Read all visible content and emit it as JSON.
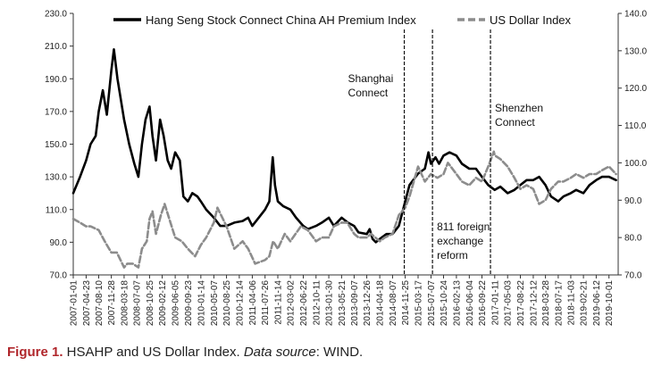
{
  "chart_data": {
    "type": "line",
    "series": [
      {
        "name": "Hang Seng Stock Connect China AH Premium Index",
        "axis": "left",
        "color": "#000000",
        "style": "solid",
        "points": [
          [
            "2007-01-01",
            120
          ],
          [
            "2007-03-01",
            130
          ],
          [
            "2007-04-23",
            140
          ],
          [
            "2007-06-01",
            150
          ],
          [
            "2007-07-15",
            155
          ],
          [
            "2007-08-10",
            170
          ],
          [
            "2007-09-15",
            183
          ],
          [
            "2007-10-20",
            168
          ],
          [
            "2007-11-28",
            195
          ],
          [
            "2007-12-20",
            208
          ],
          [
            "2008-01-20",
            190
          ],
          [
            "2008-03-18",
            165
          ],
          [
            "2008-05-01",
            150
          ],
          [
            "2008-06-15",
            138
          ],
          [
            "2008-07-20",
            130
          ],
          [
            "2008-08-20",
            150
          ],
          [
            "2008-09-20",
            165
          ],
          [
            "2008-10-25",
            173
          ],
          [
            "2008-11-20",
            155
          ],
          [
            "2008-12-20",
            140
          ],
          [
            "2009-01-25",
            165
          ],
          [
            "2009-02-25",
            155
          ],
          [
            "2009-04-01",
            140
          ],
          [
            "2009-05-01",
            135
          ],
          [
            "2009-06-05",
            145
          ],
          [
            "2009-07-15",
            140
          ],
          [
            "2009-08-15",
            118
          ],
          [
            "2009-09-23",
            115
          ],
          [
            "2009-11-01",
            120
          ],
          [
            "2009-12-15",
            118
          ],
          [
            "2010-01-14",
            115
          ],
          [
            "2010-03-01",
            110
          ],
          [
            "2010-05-07",
            105
          ],
          [
            "2010-07-01",
            100
          ],
          [
            "2010-08-25",
            100
          ],
          [
            "2010-11-01",
            102
          ],
          [
            "2011-01-12",
            103
          ],
          [
            "2011-03-01",
            105
          ],
          [
            "2011-04-06",
            100
          ],
          [
            "2011-06-01",
            105
          ],
          [
            "2011-07-26",
            110
          ],
          [
            "2011-09-01",
            115
          ],
          [
            "2011-10-01",
            142
          ],
          [
            "2011-10-20",
            125
          ],
          [
            "2011-11-14",
            115
          ],
          [
            "2012-01-01",
            112
          ],
          [
            "2012-03-02",
            110
          ],
          [
            "2012-04-20",
            105
          ],
          [
            "2012-06-22",
            100
          ],
          [
            "2012-08-01",
            98
          ],
          [
            "2012-10-11",
            100
          ],
          [
            "2012-12-01",
            102
          ],
          [
            "2013-01-30",
            105
          ],
          [
            "2013-03-15",
            100
          ],
          [
            "2013-05-21",
            105
          ],
          [
            "2013-07-15",
            102
          ],
          [
            "2013-09-07",
            100
          ],
          [
            "2013-10-15",
            96
          ],
          [
            "2013-12-26",
            95
          ],
          [
            "2014-01-20",
            98
          ],
          [
            "2014-02-15",
            92
          ],
          [
            "2014-03-15",
            90
          ],
          [
            "2014-04-18",
            92
          ],
          [
            "2014-06-15",
            95
          ],
          [
            "2014-08-07",
            95
          ],
          [
            "2014-10-01",
            100
          ],
          [
            "2014-11-25",
            115
          ],
          [
            "2015-01-01",
            125
          ],
          [
            "2015-03-17",
            132
          ],
          [
            "2015-05-15",
            135
          ],
          [
            "2015-06-15",
            145
          ],
          [
            "2015-07-07",
            138
          ],
          [
            "2015-08-15",
            142
          ],
          [
            "2015-09-15",
            138
          ],
          [
            "2015-10-24",
            143
          ],
          [
            "2015-12-15",
            145
          ],
          [
            "2016-02-13",
            143
          ],
          [
            "2016-04-01",
            138
          ],
          [
            "2016-06-04",
            135
          ],
          [
            "2016-08-01",
            135
          ],
          [
            "2016-09-22",
            130
          ],
          [
            "2016-11-15",
            125
          ],
          [
            "2017-01-11",
            122
          ],
          [
            "2017-03-01",
            124
          ],
          [
            "2017-05-03",
            120
          ],
          [
            "2017-07-01",
            122
          ],
          [
            "2017-08-22",
            125
          ],
          [
            "2017-10-15",
            128
          ],
          [
            "2017-12-12",
            128
          ],
          [
            "2018-02-01",
            130
          ],
          [
            "2018-03-28",
            125
          ],
          [
            "2018-05-15",
            118
          ],
          [
            "2018-07-17",
            115
          ],
          [
            "2018-09-01",
            118
          ],
          [
            "2018-11-03",
            120
          ],
          [
            "2018-12-20",
            122
          ],
          [
            "2019-02-21",
            120
          ],
          [
            "2019-04-15",
            125
          ],
          [
            "2019-06-12",
            128
          ],
          [
            "2019-08-01",
            130
          ],
          [
            "2019-10-01",
            130
          ],
          [
            "2019-12-01",
            128
          ]
        ]
      },
      {
        "name": "US Dollar Index",
        "axis": "right",
        "color": "#8c8c8c",
        "style": "dashed",
        "points": [
          [
            "2007-01-01",
            85
          ],
          [
            "2007-03-01",
            84
          ],
          [
            "2007-04-23",
            83
          ],
          [
            "2007-06-01",
            83
          ],
          [
            "2007-08-10",
            82
          ],
          [
            "2007-10-01",
            79
          ],
          [
            "2007-11-28",
            76
          ],
          [
            "2008-01-15",
            76
          ],
          [
            "2008-03-18",
            72
          ],
          [
            "2008-04-15",
            73
          ],
          [
            "2008-06-01",
            73
          ],
          [
            "2008-07-20",
            72
          ],
          [
            "2008-08-20",
            77
          ],
          [
            "2008-10-01",
            79
          ],
          [
            "2008-10-25",
            85
          ],
          [
            "2008-11-20",
            87
          ],
          [
            "2008-12-20",
            81
          ],
          [
            "2009-02-01",
            86
          ],
          [
            "2009-03-05",
            89
          ],
          [
            "2009-04-15",
            85
          ],
          [
            "2009-06-05",
            80
          ],
          [
            "2009-08-01",
            79
          ],
          [
            "2009-09-23",
            77
          ],
          [
            "2009-11-25",
            75
          ],
          [
            "2010-01-14",
            78
          ],
          [
            "2010-03-01",
            80
          ],
          [
            "2010-05-07",
            84
          ],
          [
            "2010-06-07",
            88
          ],
          [
            "2010-08-25",
            83
          ],
          [
            "2010-11-01",
            77
          ],
          [
            "2011-01-12",
            79
          ],
          [
            "2011-03-01",
            77
          ],
          [
            "2011-05-01",
            73
          ],
          [
            "2011-07-26",
            74
          ],
          [
            "2011-09-01",
            75
          ],
          [
            "2011-10-04",
            79
          ],
          [
            "2011-11-14",
            77
          ],
          [
            "2012-01-13",
            81
          ],
          [
            "2012-03-02",
            79
          ],
          [
            "2012-06-01",
            83
          ],
          [
            "2012-08-01",
            82
          ],
          [
            "2012-10-11",
            79
          ],
          [
            "2012-12-01",
            80
          ],
          [
            "2013-01-30",
            80
          ],
          [
            "2013-03-15",
            83
          ],
          [
            "2013-05-21",
            84
          ],
          [
            "2013-07-09",
            84
          ],
          [
            "2013-09-07",
            81
          ],
          [
            "2013-10-15",
            80
          ],
          [
            "2013-12-26",
            80
          ],
          [
            "2014-02-01",
            81
          ],
          [
            "2014-04-18",
            79
          ],
          [
            "2014-06-01",
            80
          ],
          [
            "2014-08-07",
            81
          ],
          [
            "2014-10-01",
            86
          ],
          [
            "2014-11-25",
            88
          ],
          [
            "2015-01-01",
            91
          ],
          [
            "2015-03-17",
            99
          ],
          [
            "2015-05-15",
            95
          ],
          [
            "2015-07-07",
            97
          ],
          [
            "2015-09-01",
            96
          ],
          [
            "2015-10-24",
            97
          ],
          [
            "2015-12-01",
            100
          ],
          [
            "2016-02-13",
            97
          ],
          [
            "2016-04-01",
            95
          ],
          [
            "2016-06-04",
            94
          ],
          [
            "2016-08-01",
            96
          ],
          [
            "2016-09-22",
            95
          ],
          [
            "2016-11-15",
            99
          ],
          [
            "2017-01-03",
            103
          ],
          [
            "2017-01-11",
            102
          ],
          [
            "2017-03-01",
            101
          ],
          [
            "2017-05-03",
            99
          ],
          [
            "2017-07-01",
            96
          ],
          [
            "2017-08-22",
            93
          ],
          [
            "2017-10-15",
            94
          ],
          [
            "2017-12-12",
            93
          ],
          [
            "2018-02-01",
            89
          ],
          [
            "2018-03-28",
            90
          ],
          [
            "2018-05-15",
            93
          ],
          [
            "2018-07-17",
            95
          ],
          [
            "2018-09-01",
            95
          ],
          [
            "2018-11-03",
            96
          ],
          [
            "2018-12-20",
            97
          ],
          [
            "2019-02-21",
            96
          ],
          [
            "2019-04-15",
            97
          ],
          [
            "2019-06-12",
            97
          ],
          [
            "2019-08-01",
            98
          ],
          [
            "2019-10-01",
            99
          ],
          [
            "2019-12-01",
            97
          ]
        ]
      }
    ],
    "x_ticks": [
      "2007-01-01",
      "2007-04-23",
      "2007-08-10",
      "2007-11-28",
      "2008-03-18",
      "2008-07-07",
      "2008-10-25",
      "2009-02-12",
      "2009-06-05",
      "2009-09-23",
      "2010-01-14",
      "2010-05-07",
      "2010-08-25",
      "2010-12-14",
      "2011-04-06",
      "2011-07-26",
      "2011-11-14",
      "2012-03-02",
      "2012-06-22",
      "2012-10-11",
      "2013-01-30",
      "2013-05-21",
      "2013-09-07",
      "2013-12-26",
      "2014-04-18",
      "2014-08-07",
      "2014-11-25",
      "2015-03-17",
      "2015-07-07",
      "2015-10-24",
      "2016-02-13",
      "2016-06-04",
      "2016-09-22",
      "2017-01-11",
      "2017-05-03",
      "2017-08-22",
      "2017-12-12",
      "2018-03-28",
      "2018-07-17",
      "2018-11-03",
      "2019-02-21",
      "2019-06-12",
      "2019-10-01"
    ],
    "y_left": {
      "min": 70,
      "max": 230,
      "ticks": [
        "70.0",
        "90.0",
        "110.0",
        "130.0",
        "150.0",
        "170.0",
        "190.0",
        "210.0",
        "230.0"
      ]
    },
    "y_right": {
      "min": 70,
      "max": 140,
      "ticks": [
        "70.0",
        "80.0",
        "90.0",
        "100.0",
        "110.0",
        "120.0",
        "130.0",
        "140.0"
      ]
    },
    "x_range": [
      "2007-01-01",
      "2019-12-20"
    ],
    "events": [
      {
        "date": "2014-11-17",
        "label": [
          "Shanghai",
          "Connect"
        ],
        "label_y": "upper"
      },
      {
        "date": "2015-07-20",
        "label": [
          "811 foreign",
          "exchange",
          "reform"
        ],
        "label_y": "lower"
      },
      {
        "date": "2016-12-05",
        "label": [
          "Shenzhen",
          "Connect"
        ],
        "label_y": "middle"
      }
    ],
    "legend_position": "top",
    "grid": false
  },
  "caption": {
    "figure": "Figure 1.",
    "text": " HSAHP and US Dollar Index. ",
    "source_label": "Data source",
    "source_value": ": WIND."
  }
}
